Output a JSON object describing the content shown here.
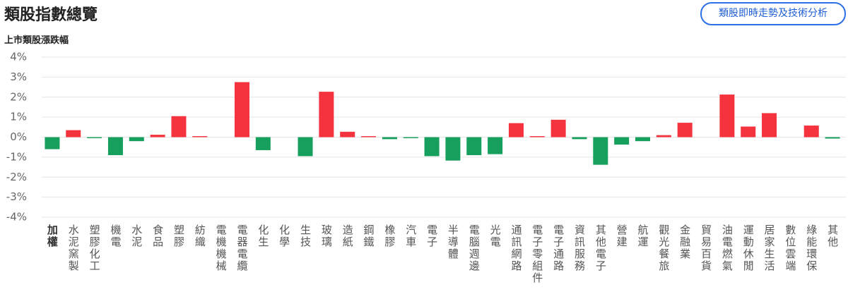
{
  "header": {
    "title": "類股指數總覽",
    "button": "類股即時走勢及技術分析"
  },
  "chart_data": {
    "type": "bar",
    "title": "上市類股漲跌幅",
    "categories": [
      "加權",
      "水泥窯製",
      "塑膠化工",
      "機電",
      "水泥",
      "食品",
      "塑膠",
      "紡織",
      "電機機械",
      "電器電纜",
      "化生",
      "化學",
      "生技",
      "玻璃",
      "造紙",
      "鋼鐵",
      "橡膠",
      "汽車",
      "電子",
      "半導體",
      "電腦週邊",
      "光電",
      "通訊網路",
      "電子零組件",
      "電子通路",
      "資訊服務",
      "其他電子",
      "營建",
      "航運",
      "觀光餐旅",
      "金融業",
      "貿易百貨",
      "油電燃氣",
      "運動休閒",
      "居家生活",
      "數位雲端",
      "綠能環保",
      "其他"
    ],
    "values": [
      -0.6,
      0.35,
      -0.05,
      -0.9,
      -0.2,
      0.12,
      1.05,
      0.05,
      0,
      2.75,
      -0.65,
      0,
      -0.95,
      2.27,
      0.27,
      0.05,
      -0.1,
      -0.05,
      -0.95,
      -1.17,
      -0.9,
      -0.85,
      0.7,
      0.05,
      0.87,
      -0.1,
      -1.38,
      -0.37,
      -0.2,
      0.1,
      0.72,
      0,
      2.13,
      0.53,
      1.2,
      0,
      0.58,
      -0.07
    ],
    "up_color": "#f5333f",
    "down_color": "#17a05d",
    "ylim": [
      -4,
      4
    ],
    "yticks": [
      {
        "value": 4,
        "label": "4%"
      },
      {
        "value": 3,
        "label": "3%"
      },
      {
        "value": 2,
        "label": "2%"
      },
      {
        "value": 1,
        "label": "1%"
      },
      {
        "value": 0,
        "label": "0%"
      },
      {
        "value": -1,
        "label": "-1%"
      },
      {
        "value": -2,
        "label": "-2%"
      },
      {
        "value": -3,
        "label": "-3%"
      },
      {
        "value": -4,
        "label": "-4%"
      }
    ],
    "grid": true
  }
}
